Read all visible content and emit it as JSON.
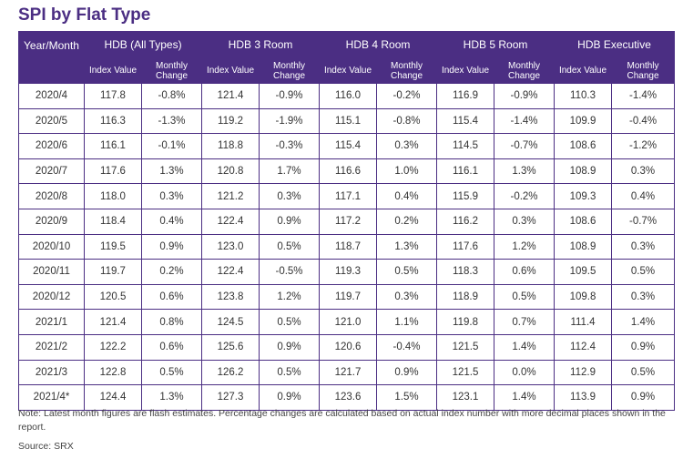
{
  "title": "SPI by Flat Type",
  "colors": {
    "header_bg": "#4b2e83",
    "header_text": "#ffffff",
    "border": "#4b2e83"
  },
  "chart_data": {
    "type": "table",
    "title": "SPI by Flat Type",
    "row_header": "Year/Month",
    "column_groups": [
      "HDB (All Types)",
      "HDB 3 Room",
      "HDB 4 Room",
      "HDB 5 Room",
      "HDB Executive"
    ],
    "sub_headers": [
      "Index Value",
      "Monthly Change"
    ],
    "rows": [
      [
        "2020/4",
        "117.8",
        "-0.8%",
        "121.4",
        "-0.9%",
        "116.0",
        "-0.2%",
        "116.9",
        "-0.9%",
        "110.3",
        "-1.4%"
      ],
      [
        "2020/5",
        "116.3",
        "-1.3%",
        "119.2",
        "-1.9%",
        "115.1",
        "-0.8%",
        "115.4",
        "-1.4%",
        "109.9",
        "-0.4%"
      ],
      [
        "2020/6",
        "116.1",
        "-0.1%",
        "118.8",
        "-0.3%",
        "115.4",
        "0.3%",
        "114.5",
        "-0.7%",
        "108.6",
        "-1.2%"
      ],
      [
        "2020/7",
        "117.6",
        "1.3%",
        "120.8",
        "1.7%",
        "116.6",
        "1.0%",
        "116.1",
        "1.3%",
        "108.9",
        "0.3%"
      ],
      [
        "2020/8",
        "118.0",
        "0.3%",
        "121.2",
        "0.3%",
        "117.1",
        "0.4%",
        "115.9",
        "-0.2%",
        "109.3",
        "0.4%"
      ],
      [
        "2020/9",
        "118.4",
        "0.4%",
        "122.4",
        "0.9%",
        "117.2",
        "0.2%",
        "116.2",
        "0.3%",
        "108.6",
        "-0.7%"
      ],
      [
        "2020/10",
        "119.5",
        "0.9%",
        "123.0",
        "0.5%",
        "118.7",
        "1.3%",
        "117.6",
        "1.2%",
        "108.9",
        "0.3%"
      ],
      [
        "2020/11",
        "119.7",
        "0.2%",
        "122.4",
        "-0.5%",
        "119.3",
        "0.5%",
        "118.3",
        "0.6%",
        "109.5",
        "0.5%"
      ],
      [
        "2020/12",
        "120.5",
        "0.6%",
        "123.8",
        "1.2%",
        "119.7",
        "0.3%",
        "118.9",
        "0.5%",
        "109.8",
        "0.3%"
      ],
      [
        "2021/1",
        "121.4",
        "0.8%",
        "124.5",
        "0.5%",
        "121.0",
        "1.1%",
        "119.8",
        "0.7%",
        "111.4",
        "1.4%"
      ],
      [
        "2021/2",
        "122.2",
        "0.6%",
        "125.6",
        "0.9%",
        "120.6",
        "-0.4%",
        "121.5",
        "1.4%",
        "112.4",
        "0.9%"
      ],
      [
        "2021/3",
        "122.8",
        "0.5%",
        "126.2",
        "0.5%",
        "121.7",
        "0.9%",
        "121.5",
        "0.0%",
        "112.9",
        "0.5%"
      ],
      [
        "2021/4*",
        "124.4",
        "1.3%",
        "127.3",
        "0.9%",
        "123.6",
        "1.5%",
        "123.1",
        "1.4%",
        "113.9",
        "0.9%"
      ]
    ]
  },
  "note": "Note: Latest month figures are flash estimates. Percentage changes are calculated based on actual index number with more decimal places shown in the report.",
  "source": "Source: SRX"
}
